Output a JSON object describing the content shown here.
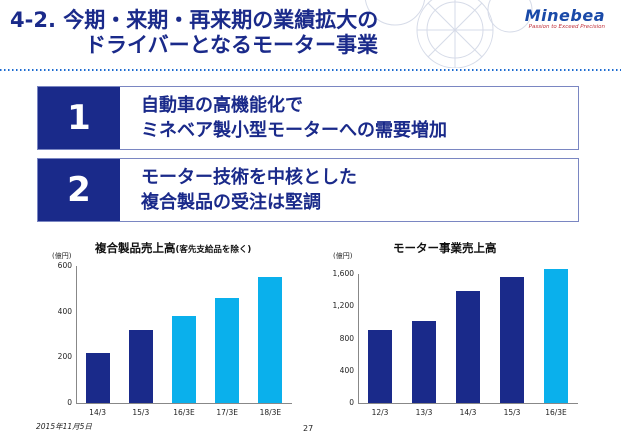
{
  "header": {
    "title_line1": "4-2. 今期・来期・再来期の業績拡大の",
    "title_line2": "ドライバーとなるモーター事業",
    "logo_name": "Minebea",
    "logo_tagline": "Passion to Exceed Precision"
  },
  "points": [
    {
      "num": "1",
      "line1": "自動車の高機能化で",
      "line2": "ミネベア製小型モーターへの需要増加"
    },
    {
      "num": "2",
      "line1": "モーター技術を中核とした",
      "line2": "複合製品の受注は堅調"
    }
  ],
  "colors": {
    "navy": "#1a2a8a",
    "actual_bar": "#1a2a8a",
    "forecast_bar": "#0ab0ec"
  },
  "chart_data": [
    {
      "type": "bar",
      "title": "複合製品売上高",
      "title_note": "(客先支給品を除く)",
      "unit": "(億円)",
      "categories": [
        "14/3",
        "15/3",
        "16/3E",
        "17/3E",
        "18/3E"
      ],
      "values": [
        220,
        320,
        380,
        460,
        550
      ],
      "forecast": [
        false,
        false,
        true,
        true,
        true
      ],
      "ylim": [
        0,
        600
      ],
      "yticks": [
        0,
        200,
        400,
        600
      ],
      "ytick_labels": [
        "0",
        "200",
        "400",
        "600"
      ]
    },
    {
      "type": "bar",
      "title": "モーター事業売上高",
      "unit": "(億円)",
      "categories": [
        "12/3",
        "13/3",
        "14/3",
        "15/3",
        "16/3E"
      ],
      "values": [
        910,
        1020,
        1390,
        1560,
        1660
      ],
      "forecast": [
        false,
        false,
        false,
        false,
        true
      ],
      "ylim": [
        0,
        1600
      ],
      "yticks": [
        0,
        400,
        800,
        1200,
        1600
      ],
      "ytick_labels": [
        "0",
        "400",
        "800",
        "1,200",
        "1,600"
      ]
    }
  ],
  "footer": {
    "date": "2015年11月5日",
    "page": "27"
  }
}
